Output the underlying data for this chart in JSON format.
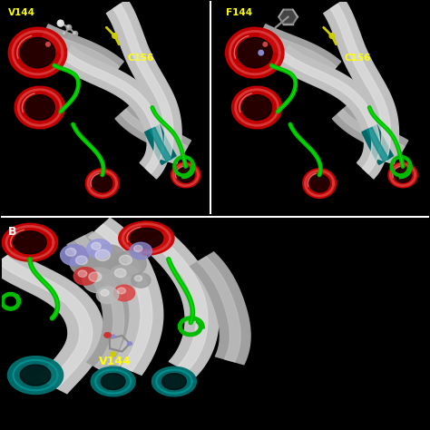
{
  "bg": "#000000",
  "white_area_color": "#ffffff",
  "labels": {
    "tl_label1": "V144",
    "tl_label2": "C156",
    "tr_label1": "F144",
    "tr_label2": "C156",
    "b_letter": "B",
    "b_label": "V144",
    "label_color": "#ffff00",
    "b_letter_color": "#ffffff"
  },
  "divider": "#ffffff",
  "c": {
    "gray1": "#c0c0c0",
    "gray2": "#e0e0e0",
    "gray3": "#a0a0a0",
    "green": "#00bb00",
    "red1": "#cc0000",
    "red2": "#dd4444",
    "teal1": "#007070",
    "teal2": "#009090",
    "atgray": "#999999",
    "atblue": "#7777bb",
    "atred": "#cc3333",
    "atyellow": "#cccc00",
    "atwhite": "#dddddd"
  },
  "panel_tl": [
    0.005,
    0.505,
    0.485,
    0.49
  ],
  "panel_tr": [
    0.51,
    0.505,
    0.485,
    0.49
  ],
  "panel_b": [
    0.005,
    0.005,
    0.645,
    0.49
  ],
  "panel_br": [
    0.655,
    0.005,
    0.34,
    0.49
  ]
}
